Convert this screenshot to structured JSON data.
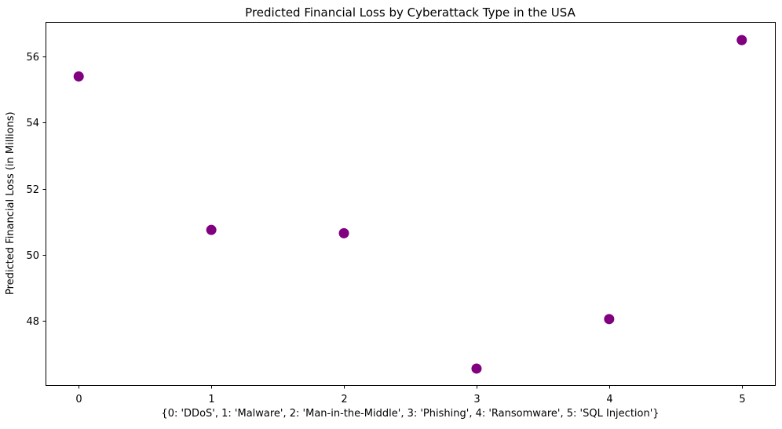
{
  "chart_data": {
    "type": "scatter",
    "title": "Predicted Financial Loss by Cyberattack Type in the USA",
    "xlabel": "{0: 'DDoS', 1: 'Malware', 2: 'Man-in-the-Middle', 3: 'Phishing', 4: 'Ransomware', 5: 'SQL Injection'}",
    "ylabel": "Predicted Financial Loss (in Millions)",
    "categories": [
      "DDoS",
      "Malware",
      "Man-in-the-Middle",
      "Phishing",
      "Ransomware",
      "SQL Injection"
    ],
    "x": [
      0,
      1,
      2,
      3,
      4,
      5
    ],
    "y": [
      55.4,
      50.75,
      50.65,
      46.55,
      48.05,
      56.5
    ],
    "xticks": [
      0,
      1,
      2,
      3,
      4,
      5
    ],
    "xtick_labels": [
      "0",
      "1",
      "2",
      "3",
      "4",
      "5"
    ],
    "yticks": [
      48,
      50,
      52,
      54,
      56
    ],
    "ytick_labels": [
      "48",
      "50",
      "52",
      "54",
      "56"
    ],
    "xlim": [
      -0.25,
      5.25
    ],
    "ylim": [
      46.05,
      57.05
    ],
    "grid": false,
    "legend": null,
    "marker_color": "#800080",
    "spine_color": "#000000",
    "text_color": "#000000",
    "background_color": "#ffffff"
  }
}
